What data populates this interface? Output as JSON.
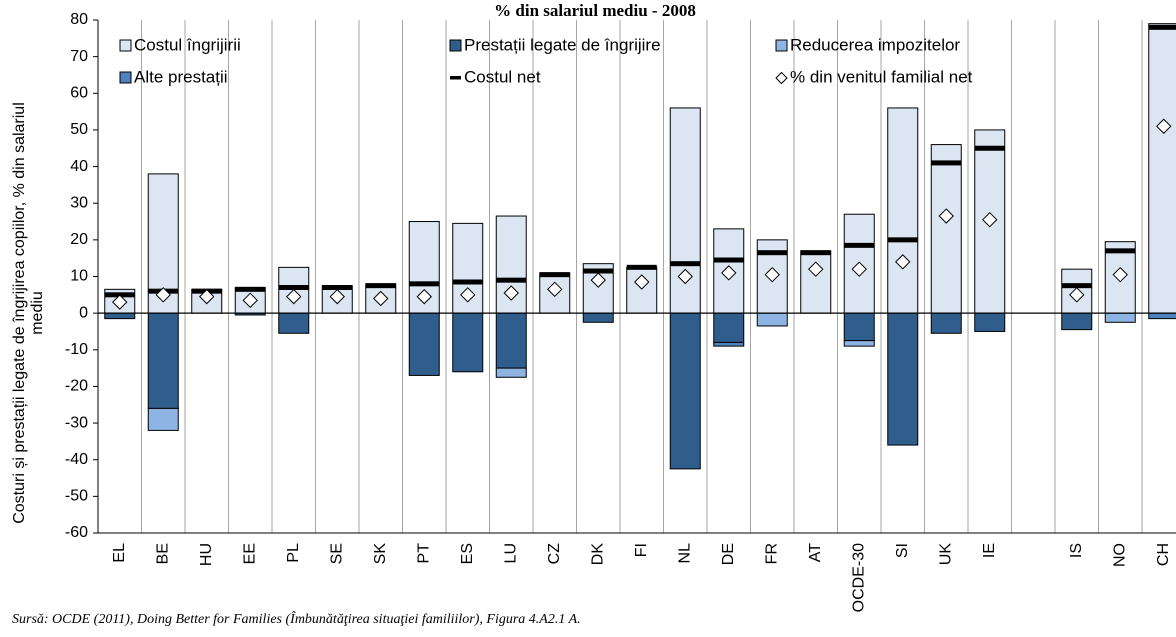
{
  "chart_data": {
    "type": "bar",
    "title": "% din salariul mediu - 2008",
    "y_label": [
      "Costuri și prestații legate de îngrijirea copiilor, % din salariul",
      "mediu"
    ],
    "source": "Sursă: OCDE (2011), Doing Better for Families (Îmbunătăţirea situaţiei familiilor), Figura 4.A2.1 A.",
    "categories": [
      "EL",
      "BE",
      "HU",
      "EE",
      "PL",
      "SE",
      "SK",
      "PT",
      "ES",
      "LU",
      "CZ",
      "DK",
      "FI",
      "NL",
      "DE",
      "FR",
      "AT",
      "OCDE-30",
      "SI",
      "UK",
      "IE",
      null,
      "IS",
      "NO",
      "CH"
    ],
    "series": [
      {
        "name": "Costul îngrijirii",
        "color": "#dce6f2",
        "kind": "bar",
        "values": [
          6.5,
          38,
          6.5,
          7,
          12.5,
          7.5,
          8,
          25,
          24.5,
          26.5,
          11,
          13.5,
          12.5,
          56,
          23,
          20,
          17,
          27,
          56,
          46,
          50,
          null,
          12,
          19.5,
          79
        ]
      },
      {
        "name": "Prestații legate de îngrijire",
        "color": "#2f5d8c",
        "kind": "bar",
        "values": [
          -1.5,
          -26,
          0,
          -0.5,
          -5.5,
          0,
          0,
          -17,
          -16,
          -15,
          0,
          -2.5,
          0,
          -42.5,
          -8,
          0,
          0,
          -7.5,
          -36,
          -5.5,
          -5,
          null,
          -4.5,
          0,
          0
        ]
      },
      {
        "name": "Reducerea impozitelor",
        "color": "#8eb4e3",
        "kind": "bar",
        "values": [
          0,
          -6,
          0,
          0,
          0,
          0,
          0,
          0,
          0,
          -2.5,
          0,
          0,
          0,
          0,
          0,
          -3.5,
          0,
          -1.5,
          0,
          0,
          0,
          null,
          0,
          -2.5,
          0
        ]
      },
      {
        "name": "Alte prestații",
        "color": "#4f81bd",
        "kind": "bar",
        "values": [
          0,
          0,
          0,
          0,
          0,
          0,
          0,
          0,
          0,
          0,
          0,
          0,
          0,
          0,
          -1,
          0,
          0,
          0,
          0,
          0,
          0,
          null,
          0,
          0,
          -1.5
        ]
      },
      {
        "name": "Costul net",
        "color": "#000000",
        "kind": "dash",
        "values": [
          5,
          6,
          6,
          6.5,
          7,
          7,
          7.5,
          8,
          8.5,
          9,
          10.5,
          11.5,
          12.5,
          13.5,
          14.5,
          16.5,
          16.5,
          18.5,
          20,
          41,
          45,
          null,
          7.5,
          17,
          78
        ]
      },
      {
        "name": "% din venitul familial net",
        "color": "#ffffff",
        "kind": "marker",
        "values": [
          3,
          5,
          4.5,
          3.5,
          4.5,
          4.5,
          4,
          4.5,
          5,
          5.5,
          6.5,
          9,
          8.5,
          10,
          11,
          10.5,
          12,
          12,
          14,
          26.5,
          25.5,
          null,
          5,
          10.5,
          51
        ]
      }
    ],
    "ylim": [
      -60,
      80
    ],
    "yticks": [
      -60,
      -50,
      -40,
      -30,
      -20,
      -10,
      0,
      10,
      20,
      30,
      40,
      50,
      60,
      70,
      80
    ],
    "grid": true
  }
}
